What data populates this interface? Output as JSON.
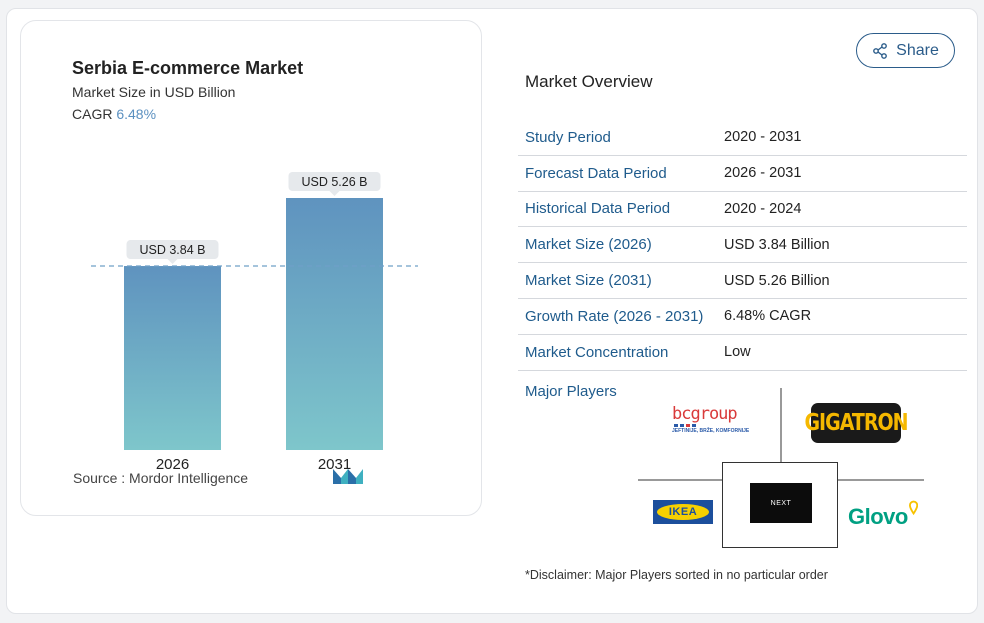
{
  "chart": {
    "title": "Serbia E-commerce Market",
    "subtitle": "Market Size in USD Billion",
    "cagr_label": "CAGR",
    "cagr_value": "6.48%",
    "source": "Source :  Mordor Intelligence",
    "colors": {
      "bar_top": "#5f93bf",
      "bar_bottom": "#7ec6cb",
      "label_bg": "#e6e9ec",
      "dash": "#6fa0c8"
    }
  },
  "chart_data": {
    "type": "bar",
    "categories": [
      "2026",
      "2031"
    ],
    "values": [
      3.84,
      5.26
    ],
    "data_labels": [
      "USD 3.84 B",
      "USD 5.26 B"
    ],
    "title": "Serbia E-commerce Market",
    "ylabel": "Market Size in USD Billion",
    "reference_line": 3.84,
    "grid": false
  },
  "share": {
    "label": "Share",
    "icon": "share-icon"
  },
  "overview": {
    "title": "Market Overview",
    "rows": [
      {
        "key": "Study Period",
        "value": "2020 - 2031"
      },
      {
        "key": "Forecast Data Period",
        "value": "2026 - 2031"
      },
      {
        "key": "Historical Data Period",
        "value": "2020 - 2024"
      },
      {
        "key": "Market Size (2026)",
        "value": "USD 3.84 Billion"
      },
      {
        "key": "Market Size (2031)",
        "value": "USD 5.26 Billion"
      },
      {
        "key": "Growth Rate (2026 - 2031)",
        "value": "6.48% CAGR"
      },
      {
        "key": "Market Concentration",
        "value": "Low"
      }
    ],
    "players_label": "Major Players",
    "players": {
      "bcgroup": {
        "name": "bcgroup",
        "tagline": "JEFTINIJE, BRŽE, KOMFORNIJE"
      },
      "gigatron": {
        "name": "GIGATRON"
      },
      "ikea": {
        "name": "IKEA"
      },
      "next": {
        "name": "NEXT"
      },
      "glovo": {
        "name": "Glovo"
      }
    },
    "disclaimer": "*Disclaimer: Major Players sorted in no particular order"
  }
}
